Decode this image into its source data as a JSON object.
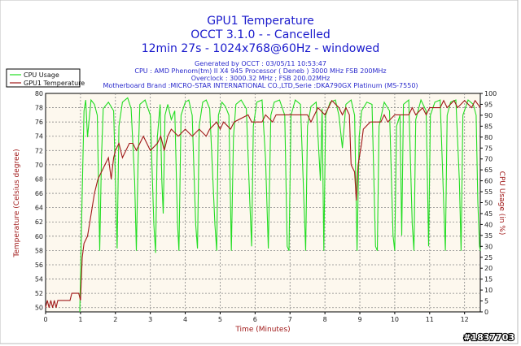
{
  "chart_data": {
    "type": "line",
    "title": "GPU1 Temperature",
    "subtitle_lines": [
      "OCCT 3.1.0 -  - Cancelled",
      "12min 27s - 1024x768@60Hz - windowed"
    ],
    "info_lines": [
      "Generated by OCCT : 03/05/11 10:53:47",
      "CPU : AMD Phenom(tm) II X4 945 Processor ( Deneb ) 3000 MHz FSB 200MHz",
      "Overclock : 3000.32 MHz ; FSB 200.02MHz",
      "Motherboard Brand :MICRO-STAR INTERNATIONAL CO.,LTD,Serie :DKA790GX Platinum (MS-7550)"
    ],
    "xlabel": "Time (Minutes)",
    "ylabel": "Temperature (Celsius degree)",
    "y2label": "CPU Usage (in %)",
    "xlim": [
      0,
      12.45
    ],
    "ylim": [
      49.4,
      80
    ],
    "y2lim": [
      0,
      100
    ],
    "xticks": [
      0,
      1,
      2,
      3,
      4,
      5,
      6,
      7,
      8,
      9,
      10,
      11,
      12
    ],
    "yticks": [
      50,
      52,
      54,
      56,
      58,
      60,
      62,
      64,
      66,
      68,
      70,
      72,
      74,
      76,
      78,
      80
    ],
    "y2ticks": [
      0,
      5,
      10,
      15,
      20,
      25,
      30,
      35,
      40,
      45,
      50,
      55,
      60,
      65,
      70,
      75,
      80,
      85,
      90,
      95,
      100
    ],
    "grid": true,
    "legend_position": "top-left",
    "watermark": "#1837703",
    "series": [
      {
        "name": "CPU Usage",
        "axis": "right",
        "color": "#22dd22",
        "points": [
          [
            0.98,
            0
          ],
          [
            1.05,
            55
          ],
          [
            1.1,
            92
          ],
          [
            1.15,
            97
          ],
          [
            1.2,
            80
          ],
          [
            1.3,
            97
          ],
          [
            1.4,
            95
          ],
          [
            1.48,
            90
          ],
          [
            1.55,
            28
          ],
          [
            1.6,
            70
          ],
          [
            1.65,
            93
          ],
          [
            1.8,
            96
          ],
          [
            1.95,
            92
          ],
          [
            2.0,
            60
          ],
          [
            2.05,
            29
          ],
          [
            2.1,
            85
          ],
          [
            2.2,
            96
          ],
          [
            2.35,
            98
          ],
          [
            2.45,
            93
          ],
          [
            2.55,
            60
          ],
          [
            2.6,
            28
          ],
          [
            2.65,
            70
          ],
          [
            2.7,
            95
          ],
          [
            2.85,
            97
          ],
          [
            3.0,
            90
          ],
          [
            3.1,
            40
          ],
          [
            3.15,
            27
          ],
          [
            3.2,
            80
          ],
          [
            3.28,
            95
          ],
          [
            3.33,
            60
          ],
          [
            3.37,
            45
          ],
          [
            3.42,
            90
          ],
          [
            3.5,
            95
          ],
          [
            3.6,
            88
          ],
          [
            3.7,
            92
          ],
          [
            3.78,
            40
          ],
          [
            3.82,
            28
          ],
          [
            3.88,
            90
          ],
          [
            4.0,
            96
          ],
          [
            4.1,
            97
          ],
          [
            4.2,
            90
          ],
          [
            4.3,
            40
          ],
          [
            4.35,
            29
          ],
          [
            4.4,
            85
          ],
          [
            4.5,
            96
          ],
          [
            4.6,
            97
          ],
          [
            4.7,
            93
          ],
          [
            4.85,
            40
          ],
          [
            4.9,
            28
          ],
          [
            4.95,
            90
          ],
          [
            5.05,
            96
          ],
          [
            5.15,
            94
          ],
          [
            5.25,
            90
          ],
          [
            5.32,
            28
          ],
          [
            5.38,
            80
          ],
          [
            5.45,
            95
          ],
          [
            5.6,
            97
          ],
          [
            5.75,
            93
          ],
          [
            5.85,
            50
          ],
          [
            5.9,
            30
          ],
          [
            5.95,
            85
          ],
          [
            6.05,
            96
          ],
          [
            6.2,
            97
          ],
          [
            6.3,
            70
          ],
          [
            6.38,
            29
          ],
          [
            6.45,
            90
          ],
          [
            6.55,
            96
          ],
          [
            6.7,
            97
          ],
          [
            6.85,
            90
          ],
          [
            6.92,
            30
          ],
          [
            6.97,
            28
          ],
          [
            7.03,
            90
          ],
          [
            7.15,
            97
          ],
          [
            7.3,
            95
          ],
          [
            7.4,
            50
          ],
          [
            7.45,
            28
          ],
          [
            7.5,
            85
          ],
          [
            7.6,
            94
          ],
          [
            7.75,
            96
          ],
          [
            7.82,
            75
          ],
          [
            7.87,
            60
          ],
          [
            7.92,
            93
          ],
          [
            7.97,
            28
          ],
          [
            8.02,
            90
          ],
          [
            8.15,
            96
          ],
          [
            8.3,
            97
          ],
          [
            8.4,
            90
          ],
          [
            8.5,
            75
          ],
          [
            8.6,
            95
          ],
          [
            8.75,
            97
          ],
          [
            8.85,
            90
          ],
          [
            8.92,
            28
          ],
          [
            8.98,
            80
          ],
          [
            9.05,
            92
          ],
          [
            9.2,
            96
          ],
          [
            9.35,
            95
          ],
          [
            9.45,
            30
          ],
          [
            9.5,
            28
          ],
          [
            9.55,
            85
          ],
          [
            9.7,
            96
          ],
          [
            9.85,
            92
          ],
          [
            9.95,
            35
          ],
          [
            10.0,
            28
          ],
          [
            10.05,
            85
          ],
          [
            10.15,
            90
          ],
          [
            10.2,
            35
          ],
          [
            10.25,
            95
          ],
          [
            10.4,
            97
          ],
          [
            10.5,
            40
          ],
          [
            10.55,
            28
          ],
          [
            10.6,
            88
          ],
          [
            10.75,
            97
          ],
          [
            10.9,
            92
          ],
          [
            10.97,
            30
          ],
          [
            11.02,
            90
          ],
          [
            11.15,
            96
          ],
          [
            11.3,
            97
          ],
          [
            11.4,
            50
          ],
          [
            11.45,
            28
          ],
          [
            11.5,
            90
          ],
          [
            11.6,
            96
          ],
          [
            11.75,
            97
          ],
          [
            11.85,
            60
          ],
          [
            11.9,
            28
          ],
          [
            11.95,
            90
          ],
          [
            12.1,
            97
          ],
          [
            12.25,
            95
          ],
          [
            12.33,
            90
          ],
          [
            12.38,
            50
          ],
          [
            12.43,
            30
          ],
          [
            12.45,
            28
          ]
        ]
      },
      {
        "name": "GPU1 Temperature",
        "axis": "left",
        "color": "#a01818",
        "points": [
          [
            0,
            50
          ],
          [
            0.05,
            51
          ],
          [
            0.1,
            50
          ],
          [
            0.15,
            51
          ],
          [
            0.2,
            50
          ],
          [
            0.25,
            51
          ],
          [
            0.3,
            50
          ],
          [
            0.35,
            51
          ],
          [
            0.7,
            51
          ],
          [
            0.75,
            52
          ],
          [
            0.95,
            52
          ],
          [
            1.0,
            51
          ],
          [
            1.05,
            57
          ],
          [
            1.1,
            59
          ],
          [
            1.2,
            60
          ],
          [
            1.3,
            63
          ],
          [
            1.4,
            66
          ],
          [
            1.5,
            68
          ],
          [
            1.6,
            69
          ],
          [
            1.7,
            70
          ],
          [
            1.8,
            71
          ],
          [
            1.88,
            68
          ],
          [
            1.95,
            71
          ],
          [
            2.0,
            72
          ],
          [
            2.1,
            73
          ],
          [
            2.2,
            71
          ],
          [
            2.3,
            72
          ],
          [
            2.4,
            73
          ],
          [
            2.5,
            73
          ],
          [
            2.6,
            72
          ],
          [
            2.7,
            73
          ],
          [
            2.8,
            74
          ],
          [
            2.9,
            73
          ],
          [
            3.0,
            72
          ],
          [
            3.2,
            73
          ],
          [
            3.3,
            74
          ],
          [
            3.4,
            72
          ],
          [
            3.5,
            74
          ],
          [
            3.6,
            75
          ],
          [
            3.8,
            74
          ],
          [
            4.0,
            75
          ],
          [
            4.2,
            74
          ],
          [
            4.4,
            75
          ],
          [
            4.6,
            74
          ],
          [
            4.7,
            75
          ],
          [
            4.9,
            76
          ],
          [
            5.0,
            75
          ],
          [
            5.1,
            76
          ],
          [
            5.3,
            75
          ],
          [
            5.4,
            76
          ],
          [
            5.8,
            77
          ],
          [
            5.9,
            76
          ],
          [
            6.2,
            76
          ],
          [
            6.3,
            77
          ],
          [
            6.5,
            76
          ],
          [
            6.6,
            77
          ],
          [
            7.5,
            77
          ],
          [
            7.6,
            76
          ],
          [
            7.8,
            78
          ],
          [
            8.0,
            77
          ],
          [
            8.1,
            78
          ],
          [
            8.2,
            79
          ],
          [
            8.4,
            78
          ],
          [
            8.5,
            77
          ],
          [
            8.6,
            78
          ],
          [
            8.7,
            77
          ],
          [
            8.75,
            70
          ],
          [
            8.85,
            69
          ],
          [
            8.9,
            65
          ],
          [
            8.95,
            70
          ],
          [
            9.05,
            73
          ],
          [
            9.1,
            75
          ],
          [
            9.3,
            76
          ],
          [
            9.6,
            76
          ],
          [
            9.7,
            77
          ],
          [
            9.8,
            76
          ],
          [
            10.0,
            77
          ],
          [
            10.4,
            77
          ],
          [
            10.5,
            78
          ],
          [
            10.6,
            77
          ],
          [
            10.8,
            78
          ],
          [
            10.9,
            77
          ],
          [
            11.0,
            78
          ],
          [
            11.3,
            78
          ],
          [
            11.4,
            79
          ],
          [
            11.5,
            78
          ],
          [
            11.7,
            79
          ],
          [
            11.8,
            78
          ],
          [
            12.0,
            79
          ],
          [
            12.2,
            78
          ],
          [
            12.3,
            79
          ],
          [
            12.45,
            78
          ]
        ]
      }
    ]
  }
}
